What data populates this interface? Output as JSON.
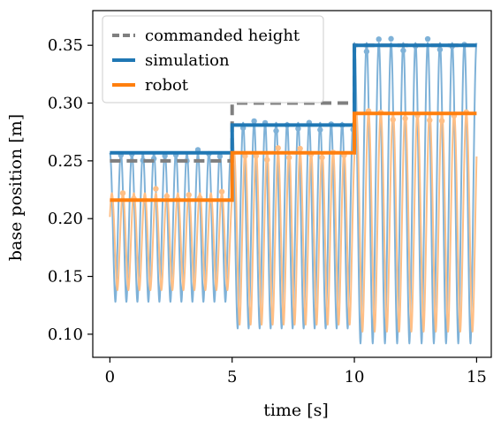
{
  "chart_data": {
    "type": "line",
    "xlabel": "time [s]",
    "ylabel": "base position [m]",
    "xlim": [
      -0.7,
      15.6
    ],
    "ylim": [
      0.08,
      0.38
    ],
    "xticks": [
      0,
      5,
      10,
      15
    ],
    "xtick_labels": [
      "0",
      "5",
      "10",
      "15"
    ],
    "yticks": [
      0.1,
      0.15,
      0.2,
      0.25,
      0.3,
      0.35
    ],
    "ytick_labels": [
      "0.10",
      "0.15",
      "0.20",
      "0.25",
      "0.30",
      "0.35"
    ],
    "grid": false,
    "legend_position": "top-left",
    "legend": [
      "commanded height",
      "simulation",
      "robot"
    ],
    "colors": {
      "commanded": "#7f7f7f",
      "simulation": "#1f77b4",
      "robot": "#ff7f0e",
      "simulation_raw": "#7fb2d8",
      "robot_raw": "#ffbf86"
    },
    "series": [
      {
        "name": "commanded height",
        "style": "dashed",
        "x": [
          0,
          5,
          5,
          10,
          10,
          15
        ],
        "y": [
          0.25,
          0.25,
          0.3,
          0.3,
          0.35,
          0.35
        ]
      },
      {
        "name": "simulation",
        "style": "step",
        "x": [
          0,
          5,
          5,
          10,
          10,
          15
        ],
        "y": [
          0.257,
          0.257,
          0.281,
          0.281,
          0.35,
          0.35
        ]
      },
      {
        "name": "robot",
        "style": "step",
        "x": [
          0,
          5,
          5,
          10,
          10,
          15
        ],
        "y": [
          0.216,
          0.216,
          0.257,
          0.257,
          0.291,
          0.291
        ]
      },
      {
        "name": "",
        "style": "oscillation",
        "color_key": "simulation_raw",
        "segments": [
          {
            "x0": 0.0,
            "x1": 5.0,
            "period": 0.45,
            "y_peak": 0.257,
            "y_trough": 0.128
          },
          {
            "x0": 5.0,
            "x1": 10.0,
            "period": 0.45,
            "y_peak": 0.283,
            "y_trough": 0.105
          },
          {
            "x0": 10.0,
            "x1": 15.0,
            "period": 0.5,
            "y_peak": 0.352,
            "y_trough": 0.092
          }
        ]
      },
      {
        "name": "",
        "style": "oscillation",
        "color_key": "robot_raw",
        "segments": [
          {
            "x0": 0.0,
            "x1": 5.0,
            "period": 0.45,
            "y_peak": 0.222,
            "y_trough": 0.138
          },
          {
            "x0": 5.0,
            "x1": 10.0,
            "period": 0.45,
            "y_peak": 0.258,
            "y_trough": 0.108
          },
          {
            "x0": 10.0,
            "x1": 15.0,
            "period": 0.5,
            "y_peak": 0.292,
            "y_trough": 0.102
          }
        ]
      }
    ]
  }
}
